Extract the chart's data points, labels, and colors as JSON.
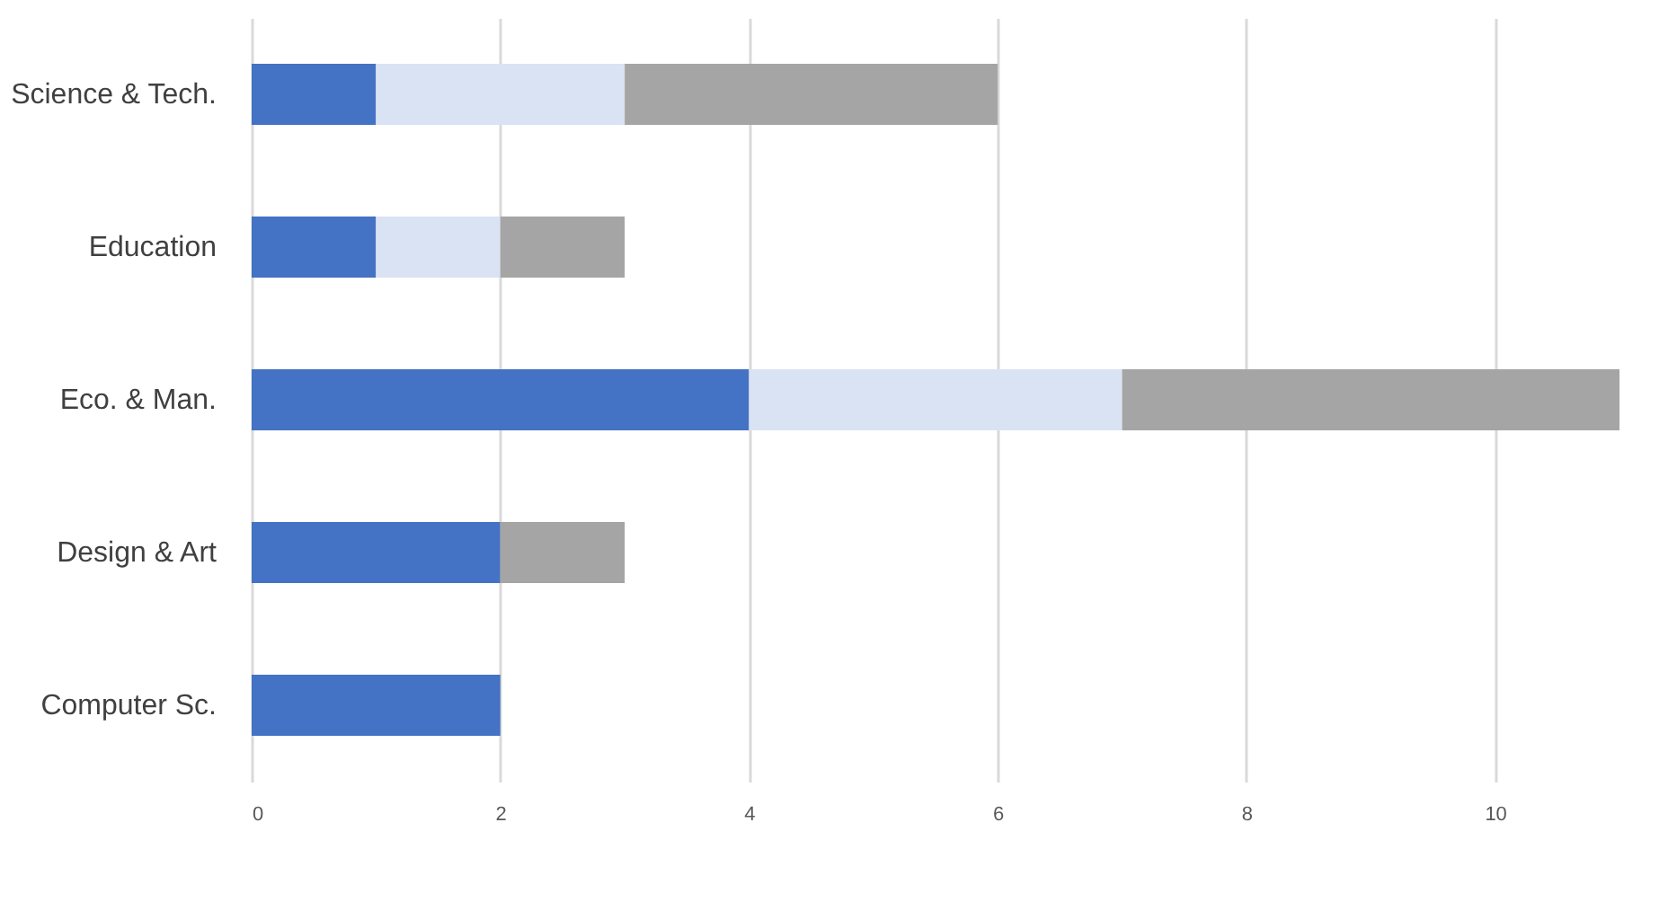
{
  "chart_data": {
    "type": "bar",
    "orientation": "horizontal",
    "stacked": true,
    "categories": [
      "Science & Tech.",
      "Education",
      "Eco. & Man.",
      "Design & Art",
      "Computer Sc."
    ],
    "series": [
      {
        "color": "#4472c4",
        "values": [
          1,
          1,
          4,
          2,
          2
        ]
      },
      {
        "color": "#dae3f3",
        "values": [
          2,
          1,
          3,
          0,
          0
        ]
      },
      {
        "color": "#a5a5a5",
        "values": [
          3,
          1,
          4,
          1,
          0
        ]
      }
    ],
    "xlim": [
      0,
      11
    ],
    "xticks": [
      0,
      2,
      4,
      6,
      8,
      10
    ],
    "grid": "x",
    "legend": false
  }
}
